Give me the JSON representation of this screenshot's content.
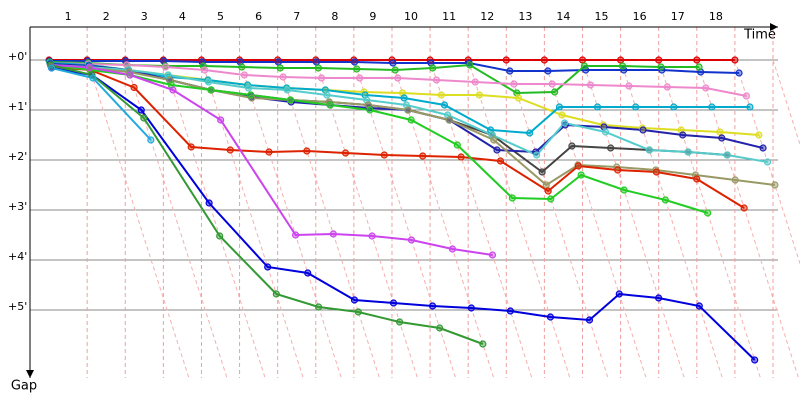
{
  "chart_data": {
    "type": "line",
    "x_axis_label": "Time",
    "y_axis_label": "Gap",
    "x": [
      0,
      1,
      2,
      3,
      4,
      5,
      6,
      7,
      8,
      9,
      10,
      11,
      12,
      13,
      14,
      15,
      16,
      17,
      18,
      19
    ],
    "xlim": [
      -0.5,
      19
    ],
    "ylim": [
      -0.66,
      6.36
    ],
    "y_inverted": true,
    "grid": true,
    "xticks": [
      {
        "value": 0.5,
        "label": "1"
      },
      {
        "value": 1.5,
        "label": "2"
      },
      {
        "value": 2.5,
        "label": "3"
      },
      {
        "value": 3.5,
        "label": "4"
      },
      {
        "value": 4.5,
        "label": "5"
      },
      {
        "value": 5.5,
        "label": "6"
      },
      {
        "value": 6.5,
        "label": "7"
      },
      {
        "value": 7.5,
        "label": "8"
      },
      {
        "value": 8.5,
        "label": "9"
      },
      {
        "value": 9.5,
        "label": "10"
      },
      {
        "value": 10.5,
        "label": "11"
      },
      {
        "value": 11.5,
        "label": "12"
      },
      {
        "value": 12.5,
        "label": "13"
      },
      {
        "value": 13.5,
        "label": "14"
      },
      {
        "value": 14.5,
        "label": "15"
      },
      {
        "value": 15.5,
        "label": "16"
      },
      {
        "value": 16.5,
        "label": "17"
      },
      {
        "value": 17.5,
        "label": "18"
      }
    ],
    "yticks": [
      {
        "value": 0,
        "label": "+0'"
      },
      {
        "value": 1,
        "label": "+1'"
      },
      {
        "value": 2,
        "label": "+2'"
      },
      {
        "value": 3,
        "label": "+3'"
      },
      {
        "value": 4,
        "label": "+4'"
      },
      {
        "value": 5,
        "label": "+5'"
      }
    ],
    "series": [
      {
        "color": "#dd0000",
        "values": [
          0,
          0,
          0,
          0,
          0,
          0,
          0,
          0,
          0,
          0,
          0,
          0,
          0,
          0,
          0,
          0,
          0,
          0,
          0,
          null
        ]
      },
      {
        "color": "#1133cc",
        "values": [
          0.02,
          0.02,
          0.02,
          0.02,
          0.04,
          0.04,
          0.04,
          0.04,
          0.04,
          0.06,
          0.06,
          0.06,
          0.22,
          0.22,
          0.2,
          0.2,
          0.2,
          0.24,
          0.26,
          null
        ]
      },
      {
        "color": "#22bb22",
        "values": [
          0.04,
          0.06,
          0.1,
          0.12,
          0.12,
          0.14,
          0.16,
          0.16,
          0.18,
          0.2,
          0.16,
          0.1,
          0.66,
          0.64,
          0.12,
          0.12,
          0.14,
          0.14,
          null,
          null
        ]
      },
      {
        "color": "#ee88cc",
        "values": [
          0.06,
          0.08,
          0.1,
          0.14,
          0.2,
          0.3,
          0.34,
          0.36,
          0.36,
          0.36,
          0.4,
          0.44,
          0.48,
          0.48,
          0.5,
          0.52,
          0.54,
          0.56,
          0.72,
          null
        ]
      },
      {
        "color": "#dddd22",
        "values": [
          0.08,
          0.1,
          0.2,
          0.3,
          0.4,
          0.5,
          0.56,
          0.6,
          0.64,
          0.66,
          0.7,
          0.7,
          0.76,
          1.1,
          1.3,
          1.36,
          1.4,
          1.44,
          1.5,
          null
        ]
      },
      {
        "color": "#00aacc",
        "values": [
          0.06,
          0.1,
          0.2,
          0.34,
          0.4,
          0.5,
          0.56,
          0.6,
          0.7,
          0.76,
          0.9,
          1.4,
          1.46,
          0.94,
          0.94,
          0.94,
          0.94,
          0.94,
          0.94,
          null
        ]
      },
      {
        "color": "#444444",
        "values": [
          0.1,
          0.12,
          0.2,
          0.4,
          0.6,
          0.7,
          0.8,
          0.84,
          0.9,
          1.0,
          1.2,
          1.5,
          2.24,
          1.72,
          1.76,
          1.8,
          1.84,
          1.9,
          null,
          null
        ]
      },
      {
        "color": "#2222aa",
        "values": [
          0.08,
          0.12,
          0.2,
          0.4,
          0.6,
          0.74,
          0.84,
          0.9,
          0.96,
          1.0,
          1.2,
          1.8,
          1.84,
          1.3,
          1.34,
          1.4,
          1.5,
          1.56,
          1.76,
          null
        ]
      },
      {
        "color": "#55cccc",
        "values": [
          0.1,
          0.14,
          0.2,
          0.3,
          0.44,
          0.56,
          0.6,
          0.7,
          0.8,
          0.9,
          1.1,
          1.5,
          1.9,
          1.26,
          1.44,
          1.8,
          1.84,
          1.9,
          2.04,
          null
        ]
      },
      {
        "color": "#999966",
        "values": [
          0.12,
          0.16,
          0.24,
          0.4,
          0.6,
          0.76,
          0.8,
          0.84,
          0.9,
          1.0,
          1.2,
          1.6,
          2.5,
          2.1,
          2.14,
          2.2,
          2.3,
          2.4,
          2.5,
          null
        ]
      },
      {
        "color": "#dd2200",
        "values": [
          0.14,
          0.2,
          0.55,
          1.74,
          1.8,
          1.84,
          1.82,
          1.86,
          1.9,
          1.92,
          1.94,
          2.02,
          2.62,
          2.12,
          2.2,
          2.24,
          2.38,
          2.96,
          null,
          null
        ]
      },
      {
        "color": "#22cc22",
        "values": [
          0.1,
          0.2,
          0.3,
          0.5,
          0.6,
          0.7,
          0.8,
          0.9,
          1.0,
          1.2,
          1.7,
          2.76,
          2.78,
          2.3,
          2.6,
          2.8,
          3.06,
          null,
          null,
          null
        ]
      },
      {
        "color": "#cc44ee",
        "values": [
          0.1,
          0.15,
          0.3,
          0.6,
          1.2,
          3.5,
          3.48,
          3.52,
          3.6,
          3.78,
          3.9,
          null,
          null,
          null,
          null,
          null,
          null,
          null,
          null,
          null
        ]
      },
      {
        "color": "#0000dd",
        "values": [
          0.16,
          0.3,
          1.0,
          2.86,
          4.14,
          4.26,
          4.8,
          4.86,
          4.92,
          4.96,
          5.02,
          5.14,
          5.2,
          4.68,
          4.76,
          4.92,
          6.0,
          null,
          null,
          null
        ]
      },
      {
        "color": "#339933",
        "values": [
          0.1,
          0.3,
          1.16,
          3.52,
          4.68,
          4.94,
          5.04,
          5.24,
          5.36,
          5.68,
          null,
          null,
          null,
          null,
          null,
          null,
          null,
          null,
          null,
          null
        ]
      },
      {
        "color": "#22aadd",
        "values": [
          0.16,
          0.36,
          1.6,
          null,
          null,
          null,
          null,
          null,
          null,
          null,
          null,
          null,
          null,
          null,
          null,
          null,
          null,
          null,
          null,
          null
        ]
      }
    ]
  }
}
